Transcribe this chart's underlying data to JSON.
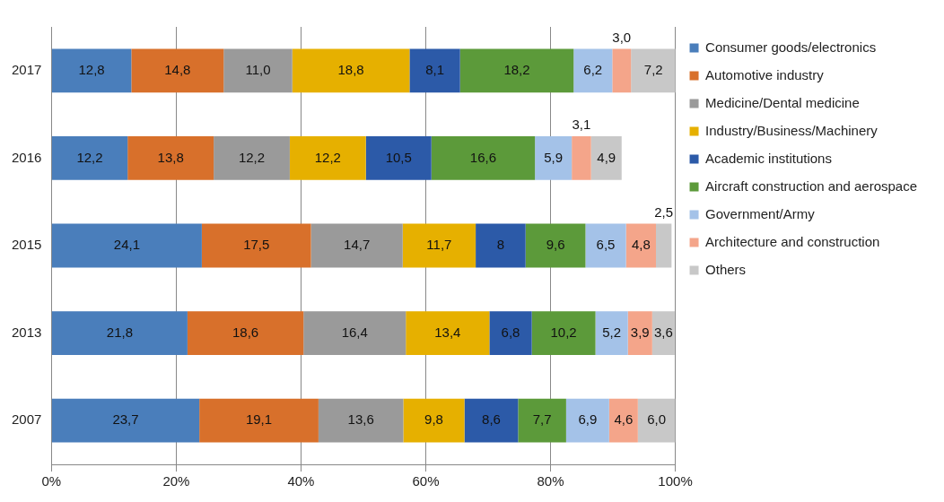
{
  "chart_data": {
    "type": "bar",
    "orientation": "horizontal",
    "stacked": true,
    "categories": [
      "2017",
      "2016",
      "2015",
      "2013",
      "2007"
    ],
    "xlim": [
      0,
      100
    ],
    "xticks": [
      {
        "value": 0,
        "label": "0%"
      },
      {
        "value": 20,
        "label": "20%"
      },
      {
        "value": 40,
        "label": "40%"
      },
      {
        "value": 60,
        "label": "60%"
      },
      {
        "value": 80,
        "label": "80%"
      },
      {
        "value": 100,
        "label": "100%"
      }
    ],
    "grid": "x",
    "legend": "right",
    "series": [
      {
        "name": "Consumer goods/electronics",
        "color": "#4a7ebb",
        "values": [
          12.8,
          12.2,
          24.1,
          21.8,
          23.7
        ],
        "value_labels": [
          "12,8",
          "12,2",
          "24,1",
          "21,8",
          "23,7"
        ]
      },
      {
        "name": "Automotive industry",
        "color": "#d8702b",
        "values": [
          14.8,
          13.8,
          17.5,
          18.6,
          19.1
        ],
        "value_labels": [
          "14,8",
          "13,8",
          "17,5",
          "18,6",
          "19,1"
        ]
      },
      {
        "name": "Medicine/Dental medicine",
        "color": "#9a9a9a",
        "values": [
          11.0,
          12.2,
          14.7,
          16.4,
          13.6
        ],
        "value_labels": [
          "11,0",
          "12,2",
          "14,7",
          "16,4",
          "13,6"
        ]
      },
      {
        "name": "Industry/Business/Machinery",
        "color": "#e6b000",
        "values": [
          18.8,
          12.2,
          11.7,
          13.4,
          9.8
        ],
        "value_labels": [
          "18,8",
          "12,2",
          "11,7",
          "13,4",
          "9,8"
        ]
      },
      {
        "name": "Academic institutions",
        "color": "#2c5aa8",
        "values": [
          8.1,
          10.5,
          8,
          6.8,
          8.6
        ],
        "value_labels": [
          "8,1",
          "10,5",
          "8",
          "6,8",
          "8,6"
        ]
      },
      {
        "name": "Aircraft construction and aerospace",
        "color": "#5c9a3a",
        "values": [
          18.2,
          16.6,
          9.6,
          10.2,
          7.7
        ],
        "value_labels": [
          "18,2",
          "16,6",
          "9,6",
          "10,2",
          "7,7"
        ]
      },
      {
        "name": "Government/Army",
        "color": "#a4c2e8",
        "values": [
          6.2,
          5.9,
          6.5,
          5.2,
          6.9
        ],
        "value_labels": [
          "6,2",
          "5,9",
          "6,5",
          "5,2",
          "6,9"
        ]
      },
      {
        "name": "Architecture and construction",
        "color": "#f4a58a",
        "values": [
          3.0,
          3.1,
          4.8,
          3.9,
          4.6
        ],
        "value_labels": [
          "3,0",
          "3,1",
          "4,8",
          "3,9",
          "4,6"
        ]
      },
      {
        "name": "Others",
        "color": "#c8c8c8",
        "values": [
          7.2,
          4.9,
          2.5,
          3.6,
          6.0
        ],
        "value_labels": [
          "7,2",
          "4,9",
          "2,5",
          "3,6",
          "6,0"
        ]
      }
    ]
  }
}
